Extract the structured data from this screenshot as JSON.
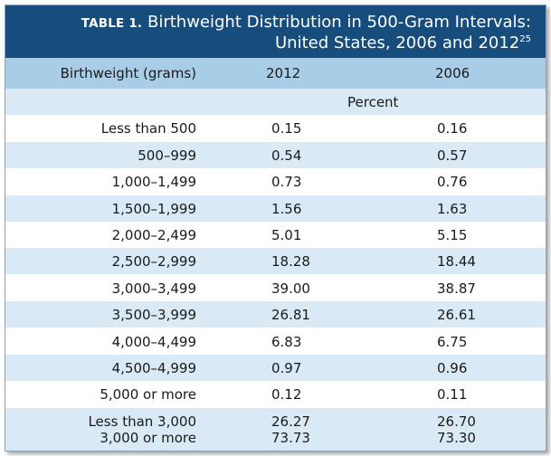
{
  "title": {
    "label": "TABLE 1.",
    "line1": "Birthweight Distribution in 500-Gram Intervals:",
    "line2": "United States, 2006 and 2012",
    "ref": "25"
  },
  "columns": {
    "birthweight": "Birthweight (grams)",
    "year_a": "2012",
    "year_b": "2006"
  },
  "unit_row": "Percent",
  "rows": [
    {
      "label": "Less than 500",
      "v2012": "0.15",
      "v2006": "0.16"
    },
    {
      "label": "500–999",
      "v2012": "0.54",
      "v2006": "0.57"
    },
    {
      "label": "1,000–1,499",
      "v2012": "0.73",
      "v2006": "0.76"
    },
    {
      "label": "1,500–1,999",
      "v2012": "1.56",
      "v2006": "1.63"
    },
    {
      "label": "2,000–2,499",
      "v2012": "5.01",
      "v2006": "5.15"
    },
    {
      "label": "2,500–2,999",
      "v2012": "18.28",
      "v2006": "18.44"
    },
    {
      "label": "3,000–3,499",
      "v2012": "39.00",
      "v2006": "38.87"
    },
    {
      "label": "3,500–3,999",
      "v2012": "26.81",
      "v2006": "26.61"
    },
    {
      "label": "4,000–4,499",
      "v2012": "6.83",
      "v2006": "6.75"
    },
    {
      "label": "4,500–4,999",
      "v2012": "0.97",
      "v2006": "0.96"
    },
    {
      "label": "5,000 or more",
      "v2012": "0.12",
      "v2006": "0.11"
    }
  ],
  "summary": [
    {
      "label": "Less than 3,000",
      "v2012": "26.27",
      "v2006": "26.70"
    },
    {
      "label": "3,000 or more",
      "v2012": "73.73",
      "v2006": "73.30"
    }
  ],
  "colors": {
    "title_bg": "#164d7c",
    "header_bg": "#a9cde7",
    "band_shade": "#d9eaf6",
    "band_white": "#ffffff"
  }
}
